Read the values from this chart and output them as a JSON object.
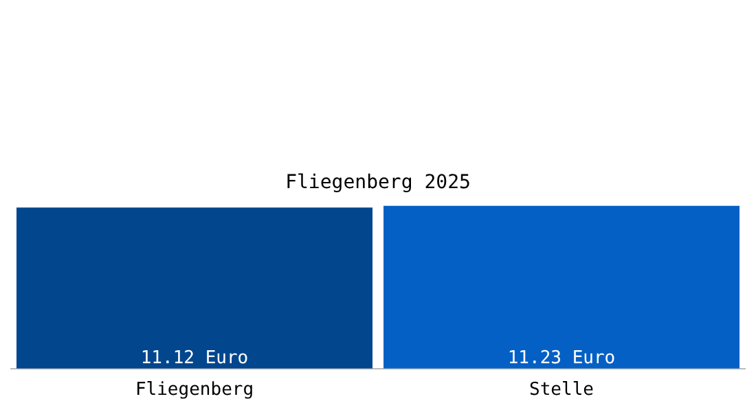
{
  "chart_data": {
    "type": "bar",
    "title": "Fliegenberg 2025",
    "categories": [
      "Fliegenberg",
      "Stelle"
    ],
    "values": [
      11.12,
      11.23
    ],
    "colors": [
      "#02468e",
      "#0460c4"
    ],
    "value_labels": [
      "11.12 Euro",
      "11.23 Euro"
    ]
  }
}
